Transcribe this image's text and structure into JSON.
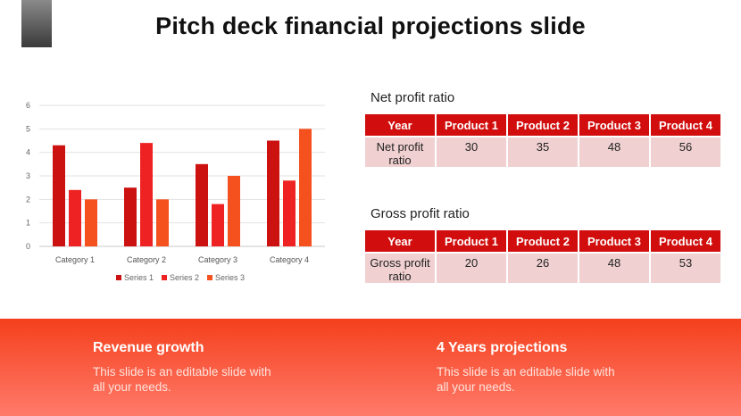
{
  "slide": {
    "title": "Pitch deck financial projections slide"
  },
  "chart_data": {
    "type": "bar",
    "categories": [
      "Category 1",
      "Category 2",
      "Category 3",
      "Category 4"
    ],
    "series": [
      {
        "name": "Series 1",
        "values": [
          4.3,
          2.5,
          3.5,
          4.5
        ]
      },
      {
        "name": "Series 2",
        "values": [
          2.4,
          4.4,
          1.8,
          2.8
        ]
      },
      {
        "name": "Series 3",
        "values": [
          2,
          2,
          3,
          5
        ]
      }
    ],
    "ylim": [
      0,
      6
    ],
    "yticks": [
      "0",
      "1",
      "2",
      "3",
      "4",
      "5",
      "6"
    ],
    "grid": true,
    "legend": "bottom",
    "colors": [
      "#cc1111",
      "#ee2222",
      "#f4511e"
    ]
  },
  "net_table": {
    "title": "Net profit ratio",
    "headers": [
      "Year",
      "Product 1",
      "Product 2",
      "Product 3",
      "Product 4"
    ],
    "row_label": "Net profit ratio",
    "values": [
      "30",
      "35",
      "48",
      "56"
    ]
  },
  "gross_table": {
    "title": "Gross profit ratio",
    "headers": [
      "Year",
      "Product 1",
      "Product 2",
      "Product 3",
      "Product 4"
    ],
    "row_label": "Gross profit ratio",
    "values": [
      "20",
      "26",
      "48",
      "53"
    ]
  },
  "footer": {
    "left": {
      "title": "Revenue growth",
      "text": "This slide is an editable slide with all your needs."
    },
    "right": {
      "title": "4 Years projections",
      "text": "This slide is an editable slide with all your needs."
    }
  }
}
